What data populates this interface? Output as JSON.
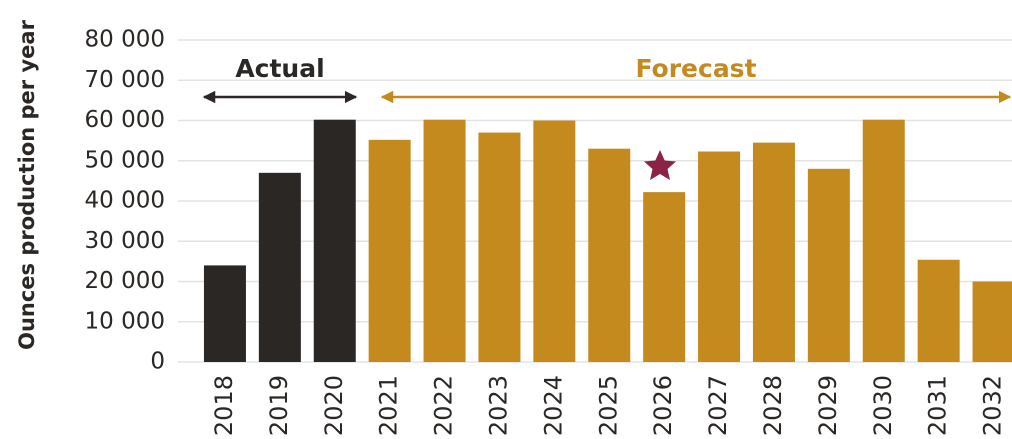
{
  "chart_data": {
    "type": "bar",
    "y_label": "Ounces production per year",
    "categories": [
      "2018",
      "2019",
      "2020",
      "2021",
      "2022",
      "2023",
      "2024",
      "2025",
      "2026",
      "2027",
      "2028",
      "2029",
      "2030",
      "2031",
      "2032"
    ],
    "series": [
      {
        "name": "Actual",
        "color": "#2b2725",
        "values": [
          24000,
          47000,
          60200,
          null,
          null,
          null,
          null,
          null,
          null,
          null,
          null,
          null,
          null,
          null,
          null
        ]
      },
      {
        "name": "Forecast",
        "color": "#c48a1e",
        "values": [
          null,
          null,
          null,
          55200,
          60200,
          57000,
          60000,
          53000,
          42200,
          52300,
          54500,
          48000,
          60200,
          25400,
          20000
        ]
      }
    ],
    "ylim": [
      0,
      80000
    ],
    "yticks": [
      {
        "value": 0,
        "label": "0"
      },
      {
        "value": 10000,
        "label": "10 000"
      },
      {
        "value": 20000,
        "label": "20 000"
      },
      {
        "value": 30000,
        "label": "30 000"
      },
      {
        "value": 40000,
        "label": "40 000"
      },
      {
        "value": 50000,
        "label": "50 000"
      },
      {
        "value": 60000,
        "label": "60 000"
      },
      {
        "value": 70000,
        "label": "70 000"
      },
      {
        "value": 80000,
        "label": "80 000"
      }
    ],
    "grid": true
  }
}
